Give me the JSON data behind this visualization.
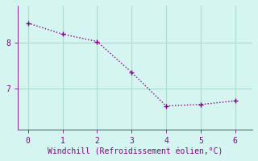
{
  "x": [
    0,
    1,
    2,
    3,
    4,
    5,
    6
  ],
  "y": [
    8.42,
    8.18,
    8.02,
    7.35,
    6.62,
    6.65,
    6.73
  ],
  "line_color": "#880088",
  "marker": "+",
  "marker_size": 4,
  "marker_lw": 1.0,
  "line_width": 1.0,
  "bg_color": "#d4f5f0",
  "grid_color": "#aaddcc",
  "xlabel": "Windchill (Refroidissement éolien,°C)",
  "xlabel_color": "#880088",
  "tick_color": "#880088",
  "ylim": [
    6.1,
    8.8
  ],
  "xlim": [
    -0.3,
    6.5
  ],
  "yticks": [
    7,
    8
  ],
  "xticks": [
    0,
    1,
    2,
    3,
    4,
    5,
    6
  ],
  "tick_fontsize": 7,
  "xlabel_fontsize": 7
}
